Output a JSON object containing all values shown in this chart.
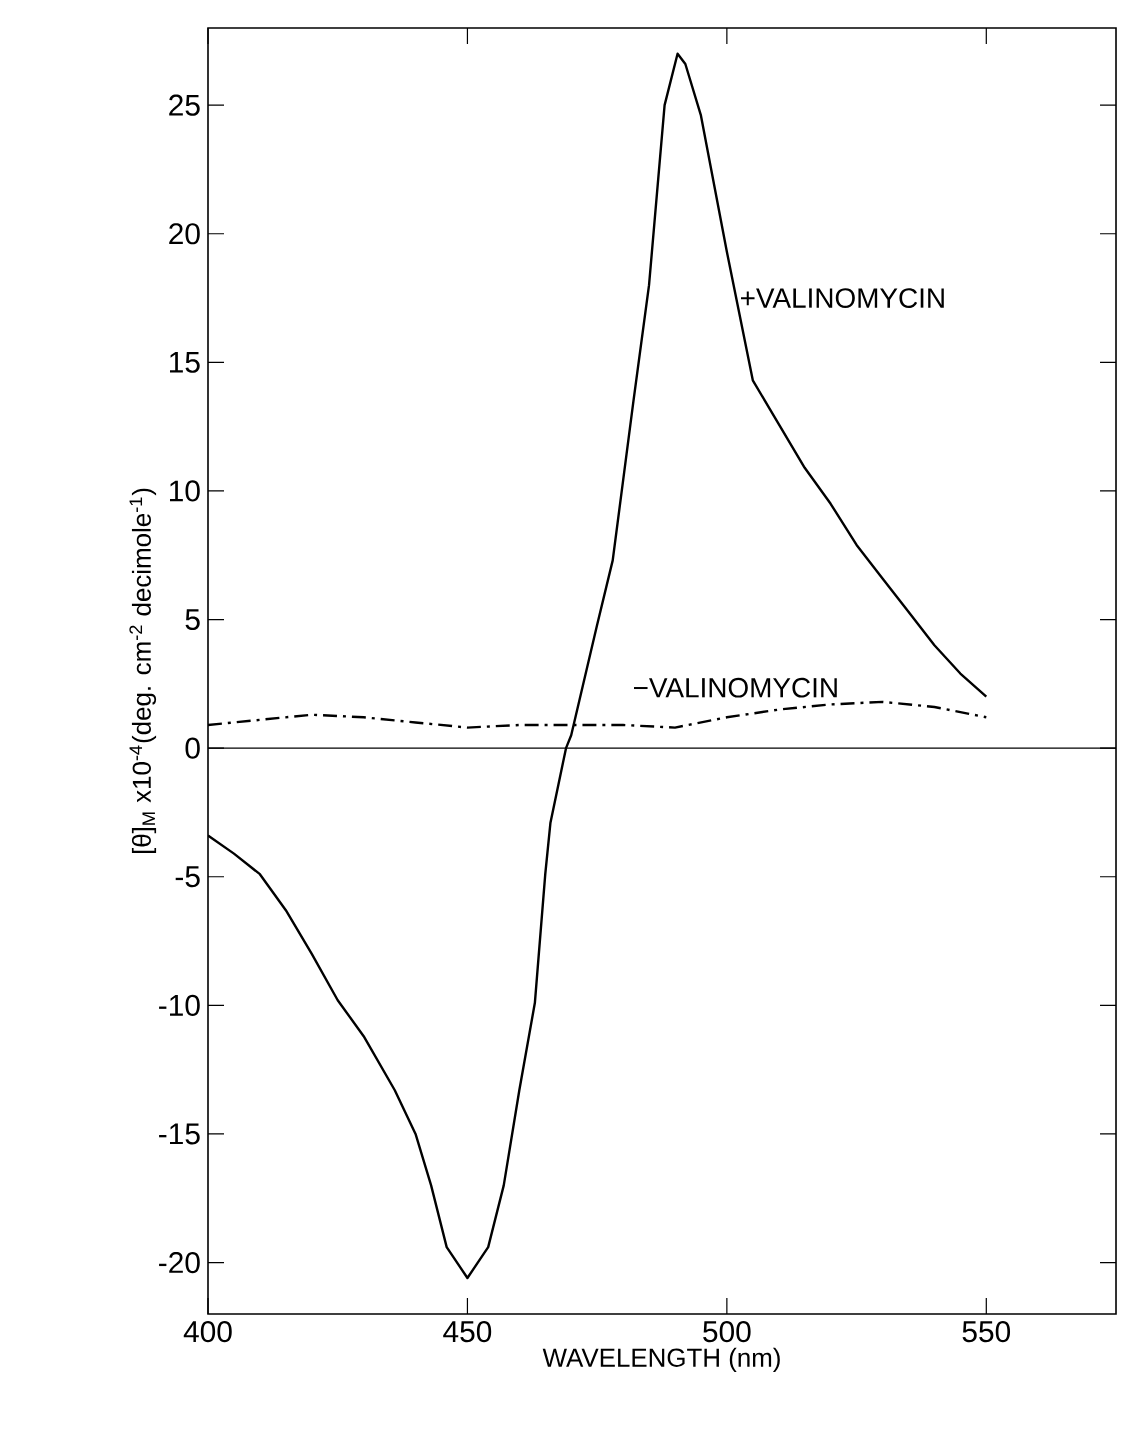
{
  "chart_data": {
    "type": "line",
    "xlabel": "WAVELENGTH (nm)",
    "ylabel": "[θ]$_{M}$ x10$^{-4}$(deg. cm$^{-2}$ decimole$^{-1}$)",
    "xlim": [
      400,
      575
    ],
    "ylim": [
      -22,
      28
    ],
    "xticks": [
      400,
      450,
      500,
      550
    ],
    "yticks": [
      -20,
      -15,
      -10,
      -5,
      0,
      5,
      10,
      15,
      20,
      25
    ],
    "grid": false,
    "ref_lines": [
      {
        "axis": "y",
        "value": 0,
        "color": "#000000"
      }
    ],
    "series": [
      {
        "color": "#000000",
        "line_style": "solid",
        "x": [
          400,
          405,
          410,
          415,
          420,
          425,
          430,
          436,
          440,
          443,
          446,
          450,
          454,
          457,
          460,
          463,
          465,
          466,
          469,
          470,
          475,
          478,
          482,
          485,
          488,
          490.5,
          492,
          495,
          500,
          505,
          510,
          515,
          520,
          525,
          530,
          535,
          540,
          545,
          550
        ],
        "values": [
          -3.4,
          -4.1,
          -4.9,
          -6.3,
          -8,
          -9.8,
          -11.2,
          -13.3,
          -15,
          -17,
          -19.4,
          -20.6,
          -19.4,
          -17,
          -13.3,
          -9.9,
          -4.9,
          -2.9,
          0,
          0.5,
          4.8,
          7.3,
          13.5,
          18,
          25,
          27,
          26.6,
          24.6,
          19.3,
          14.3,
          12.6,
          10.9,
          9.5,
          7.9,
          6.6,
          5.3,
          4,
          2.9,
          2
        ]
      },
      {
        "color": "#000000",
        "line_style": "dashdot",
        "x": [
          400,
          410,
          420,
          430,
          440,
          450,
          460,
          470,
          480,
          490,
          500,
          510,
          520,
          530,
          540,
          550
        ],
        "values": [
          0.9,
          1.1,
          1.3,
          1.2,
          1.0,
          0.8,
          0.9,
          0.9,
          0.9,
          0.8,
          1.2,
          1.5,
          1.7,
          1.8,
          1.6,
          1.2
        ]
      }
    ],
    "annotations": [
      {
        "text": "+VALINOMYCIN",
        "x": 502,
        "y": 17.5
      },
      "−VALINOMYCIN"
    ]
  }
}
